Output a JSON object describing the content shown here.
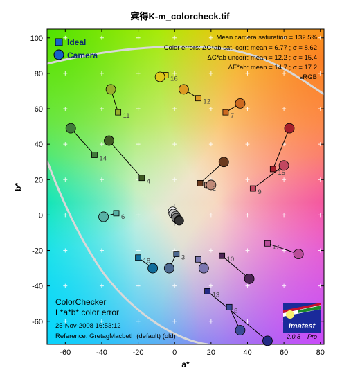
{
  "chart_data": {
    "type": "scatter",
    "title": "宾得K-m_colorcheck.tif",
    "xlabel": "a*",
    "ylabel": "b*",
    "xlim": [
      -70,
      82
    ],
    "ylim": [
      -73,
      105
    ],
    "x_ticks": [
      -60,
      -40,
      -20,
      0,
      20,
      40,
      60,
      80
    ],
    "y_ticks": [
      -60,
      -40,
      -20,
      0,
      20,
      40,
      60,
      80,
      100
    ],
    "legend": {
      "position": "top-left",
      "entries": [
        {
          "name": "Ideal",
          "marker": "square",
          "color": "#1a6e2a"
        },
        {
          "name": "Camera",
          "marker": "circle",
          "color": "#1560c8"
        }
      ]
    },
    "stats": [
      "Mean camera saturation = 132.5%",
      "Color errors:  ΔC*ab sat. corr:  mean = 6.77 ;  σ = 8.62",
      "ΔC*ab uncorr:  mean = 12.2 ;  σ = 15.4",
      "ΔE*ab:  mean = 14.7 ;  σ = 17.2",
      "sRGB"
    ],
    "bottom_text": {
      "title1": "ColorChecker",
      "title2": "L*a*b* color error",
      "date": "25-Nov-2008 16:53:12",
      "reference": "Reference: GretagMacbeth (default) (old)"
    },
    "logo": {
      "name": "Imatest",
      "version": "2.0.8",
      "edition": "Pro"
    },
    "patches": [
      {
        "id": "1",
        "ideal": [
          14,
          18
        ],
        "camera": [
          27,
          30
        ],
        "color": "#6b3a1e"
      },
      {
        "id": "2",
        "ideal": [
          18,
          17
        ],
        "camera": [
          20,
          17
        ],
        "color": "#c08a78"
      },
      {
        "id": "3",
        "ideal": [
          1,
          -22
        ],
        "camera": [
          -3,
          -30
        ],
        "color": "#4d6890"
      },
      {
        "id": "4",
        "ideal": [
          -18,
          21
        ],
        "camera": [
          -36,
          42
        ],
        "color": "#3e5a23"
      },
      {
        "id": "5",
        "ideal": [
          13,
          -25
        ],
        "camera": [
          16,
          -30
        ],
        "color": "#7a76b0"
      },
      {
        "id": "6",
        "ideal": [
          -32,
          1
        ],
        "camera": [
          -39,
          -1
        ],
        "color": "#58b2a6"
      },
      {
        "id": "7",
        "ideal": [
          28,
          58
        ],
        "camera": [
          36,
          63
        ],
        "color": "#cc6a20"
      },
      {
        "id": "8",
        "ideal": [
          30,
          -52
        ],
        "camera": [
          36,
          -65
        ],
        "color": "#3a4a96"
      },
      {
        "id": "9",
        "ideal": [
          43,
          15
        ],
        "camera": [
          60,
          28
        ],
        "color": "#c24760"
      },
      {
        "id": "10",
        "ideal": [
          26,
          -23
        ],
        "camera": [
          41,
          -36
        ],
        "color": "#4c2454"
      },
      {
        "id": "11",
        "ideal": [
          -31,
          58
        ],
        "camera": [
          -35,
          71
        ],
        "color": "#96ae2c"
      },
      {
        "id": "12",
        "ideal": [
          13,
          66
        ],
        "camera": [
          5,
          71
        ],
        "color": "#dc9a22"
      },
      {
        "id": "13",
        "ideal": [
          18,
          -43
        ],
        "camera": [
          51,
          -71
        ],
        "color": "#232a84"
      },
      {
        "id": "14",
        "ideal": [
          -44,
          34
        ],
        "camera": [
          -57,
          49
        ],
        "color": "#407a3a"
      },
      {
        "id": "15",
        "ideal": [
          54,
          26
        ],
        "camera": [
          63,
          49
        ],
        "color": "#a6202c"
      },
      {
        "id": "16",
        "ideal": [
          -5,
          79
        ],
        "camera": [
          -8,
          78
        ],
        "color": "#e0c81a"
      },
      {
        "id": "17",
        "ideal": [
          51,
          -16
        ],
        "camera": [
          68,
          -22
        ],
        "color": "#b84c98"
      },
      {
        "id": "18",
        "ideal": [
          -20,
          -24
        ],
        "camera": [
          -12,
          -30
        ],
        "color": "#106e9c"
      }
    ],
    "neutral_patches": [
      {
        "ideal": [
          -2,
          2
        ],
        "camera": [
          -1,
          2
        ],
        "color": "#f2f2f2"
      },
      {
        "ideal": [
          -1,
          1
        ],
        "camera": [
          -1,
          1
        ],
        "color": "#c8c8c8"
      },
      {
        "ideal": [
          0,
          0
        ],
        "camera": [
          0,
          0
        ],
        "color": "#a0a0a0"
      },
      {
        "ideal": [
          0,
          -1
        ],
        "camera": [
          0,
          -1
        ],
        "color": "#7a7a7a"
      },
      {
        "ideal": [
          1,
          -1
        ],
        "camera": [
          1,
          -2
        ],
        "color": "#555555"
      },
      {
        "ideal": [
          1,
          -2
        ],
        "camera": [
          1,
          -2
        ],
        "color": "#333333"
      }
    ]
  }
}
